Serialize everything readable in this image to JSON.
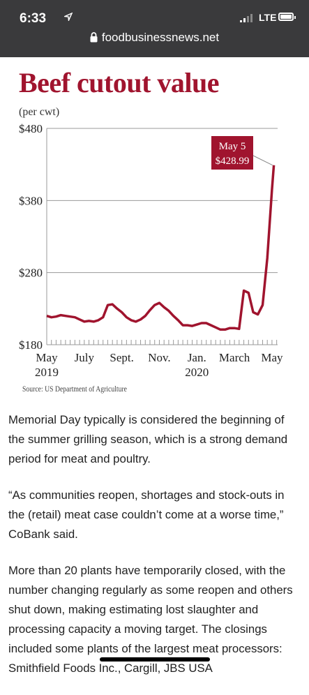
{
  "status_bar": {
    "time": "6:33",
    "network": "LTE"
  },
  "browser": {
    "url": "foodbusinessnews.net"
  },
  "chart_data": {
    "type": "line",
    "title": "Beef cutout value",
    "subtitle": "(per cwt)",
    "source": "Source: US Department of Agriculture",
    "ylim": [
      180,
      480
    ],
    "yticks": [
      "$480",
      "$380",
      "$280",
      "$180"
    ],
    "ytick_values": [
      480,
      380,
      280,
      180
    ],
    "xticks": [
      {
        "label": "May",
        "sub": "2019",
        "x": 0
      },
      {
        "label": "July",
        "sub": "",
        "x": 2
      },
      {
        "label": "Sept.",
        "sub": "",
        "x": 4
      },
      {
        "label": "Nov.",
        "sub": "",
        "x": 6
      },
      {
        "label": "Jan.",
        "sub": "2020",
        "x": 8
      },
      {
        "label": "March",
        "sub": "",
        "x": 10
      },
      {
        "label": "May",
        "sub": "",
        "x": 12
      }
    ],
    "annotation": {
      "line1": "May 5",
      "line2": "$428.99",
      "x": 12.1,
      "y": 428.99
    },
    "series": [
      {
        "x": [
          0,
          0.25,
          0.5,
          0.75,
          1,
          1.25,
          1.5,
          1.75,
          2,
          2.25,
          2.5,
          2.75,
          3,
          3.25,
          3.5,
          3.75,
          4,
          4.25,
          4.5,
          4.75,
          5,
          5.25,
          5.5,
          5.75,
          6,
          6.25,
          6.5,
          6.75,
          7,
          7.25,
          7.5,
          7.75,
          8,
          8.25,
          8.5,
          8.75,
          9,
          9.25,
          9.5,
          9.75,
          10,
          10.25,
          10.5,
          10.75,
          11,
          11.25,
          11.5,
          11.75,
          12,
          12.1
        ],
        "values": [
          220,
          218,
          219,
          221,
          220,
          219,
          218,
          215,
          212,
          213,
          212,
          214,
          218,
          235,
          236,
          230,
          225,
          218,
          214,
          212,
          215,
          220,
          228,
          235,
          238,
          232,
          227,
          220,
          214,
          207,
          207,
          206,
          208,
          210,
          210,
          207,
          204,
          201,
          201,
          203,
          203,
          202,
          255,
          252,
          225,
          222,
          235,
          300,
          395,
          428.99
        ]
      }
    ]
  },
  "article": {
    "p1": "Memorial Day typically is considered the beginning of the summer grilling season, which is a strong demand period for meat and poultry.",
    "p2": "“As communities reopen, shortages and stock-outs in the (retail) meat case couldn’t come at a worse time,” CoBank said.",
    "p3": "More than 20 plants have temporarily closed, with the number changing regularly as some reopen and others shut down, making estimating lost slaughter and processing capacity a moving target. The closings included some plants of the largest meat processors: Smithfield Foods Inc., Cargill, JBS USA"
  },
  "colors": {
    "accent": "#a0142e",
    "topbar": "#3a3a3c"
  }
}
